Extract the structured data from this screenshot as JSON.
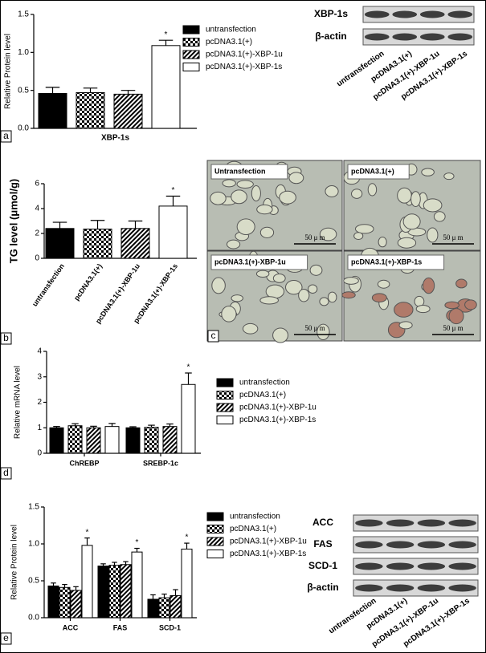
{
  "panels": [
    "a",
    "b",
    "c",
    "d",
    "e"
  ],
  "chart_data": [
    {
      "type": "bar",
      "ylabel": "Relative Protein level",
      "xlabel": "XBP-1s",
      "categories": [
        "XBP-1s"
      ],
      "series": [
        {
          "name": "untransfection",
          "color": "#000000",
          "pattern": "solid",
          "values": [
            0.46
          ],
          "errors": [
            0.08
          ],
          "significance": [
            null
          ]
        },
        {
          "name": "pcDNA3.1(+)",
          "color": "#000000",
          "pattern": "checker",
          "values": [
            0.47
          ],
          "errors": [
            0.06
          ],
          "significance": [
            null
          ]
        },
        {
          "name": "pcDNA3.1(+)-XBP-1u",
          "color": "#000000",
          "pattern": "hatch",
          "values": [
            0.45
          ],
          "errors": [
            0.05
          ],
          "significance": [
            null
          ]
        },
        {
          "name": "pcDNA3.1(+)-XBP-1s",
          "color": "#ffffff",
          "pattern": "solid",
          "values": [
            1.09
          ],
          "errors": [
            0.07
          ],
          "significance": [
            "*"
          ]
        }
      ],
      "ylim": [
        0,
        1.5
      ],
      "yticks": [
        {
          "value": 0,
          "label": "0.0"
        },
        {
          "value": 0.5,
          "label": "0.5"
        },
        {
          "value": 1,
          "label": "1.0"
        },
        {
          "value": 1.5,
          "label": "1.5"
        }
      ],
      "legend": "right"
    },
    {
      "type": "bar",
      "ylabel": "TG level (μmol/g)",
      "categories": [
        "untransfection",
        "pcDNA3.1(+)",
        "pcDNA3.1(+)-XBP-1u",
        "pcDNA3.1(+)-XBP-1s"
      ],
      "values": [
        2.4,
        2.35,
        2.4,
        4.2
      ],
      "errors": [
        0.5,
        0.7,
        0.6,
        0.8
      ],
      "significance": [
        null,
        null,
        null,
        "*"
      ],
      "colors": [
        "#000000",
        "#000000",
        "#000000",
        "#ffffff"
      ],
      "patterns": [
        "solid",
        "checker",
        "hatch",
        "solid"
      ],
      "ylim": [
        0,
        6
      ],
      "yticks": [
        0,
        2,
        4,
        6
      ]
    },
    {
      "type": "bar",
      "ylabel": "Relative mRNA level",
      "categories": [
        "ChREBP",
        "SREBP-1c"
      ],
      "series": [
        {
          "name": "untransfection",
          "color": "#000000",
          "pattern": "solid",
          "values": [
            1.0,
            1.0
          ],
          "errors": [
            0.05,
            0.04
          ],
          "significance": [
            null,
            null
          ]
        },
        {
          "name": "pcDNA3.1(+)",
          "color": "#000000",
          "pattern": "checker",
          "values": [
            1.08,
            1.02
          ],
          "errors": [
            0.08,
            0.08
          ],
          "significance": [
            null,
            null
          ]
        },
        {
          "name": "pcDNA3.1(+)-XBP-1u",
          "color": "#000000",
          "pattern": "hatch",
          "values": [
            1.0,
            1.05
          ],
          "errors": [
            0.06,
            0.1
          ],
          "significance": [
            null,
            null
          ]
        },
        {
          "name": "pcDNA3.1(+)-XBP-1s",
          "color": "#ffffff",
          "pattern": "solid",
          "values": [
            1.05,
            2.7
          ],
          "errors": [
            0.12,
            0.45
          ],
          "significance": [
            null,
            "*"
          ]
        }
      ],
      "ylim": [
        0,
        4
      ],
      "yticks": [
        0,
        1,
        2,
        3,
        4
      ],
      "legend": "right"
    },
    {
      "type": "bar",
      "ylabel": "Relative Protein level",
      "categories": [
        "ACC",
        "FAS",
        "SCD-1"
      ],
      "series": [
        {
          "name": "untransfection",
          "color": "#000000",
          "pattern": "solid",
          "values": [
            0.43,
            0.7,
            0.25
          ],
          "errors": [
            0.04,
            0.03,
            0.06
          ],
          "significance": [
            null,
            null,
            null
          ]
        },
        {
          "name": "pcDNA3.1(+)",
          "color": "#000000",
          "pattern": "checker",
          "values": [
            0.41,
            0.71,
            0.27
          ],
          "errors": [
            0.04,
            0.04,
            0.05
          ],
          "significance": [
            null,
            null,
            null
          ]
        },
        {
          "name": "pcDNA3.1(+)-XBP-1u",
          "color": "#000000",
          "pattern": "hatch",
          "values": [
            0.37,
            0.72,
            0.3
          ],
          "errors": [
            0.05,
            0.04,
            0.08
          ],
          "significance": [
            null,
            null,
            null
          ]
        },
        {
          "name": "pcDNA3.1(+)-XBP-1s",
          "color": "#ffffff",
          "pattern": "solid",
          "values": [
            0.98,
            0.89,
            0.93
          ],
          "errors": [
            0.1,
            0.05,
            0.08
          ],
          "significance": [
            "*",
            "*",
            "*"
          ]
        }
      ],
      "ylim": [
        0,
        1.5
      ],
      "yticks": [
        {
          "value": 0,
          "label": "0.0"
        },
        {
          "value": 0.5,
          "label": "0.5"
        },
        {
          "value": 1,
          "label": "1.0"
        },
        {
          "value": 1.5,
          "label": "1.5"
        }
      ],
      "legend": "right"
    }
  ],
  "blots": [
    {
      "rows": [
        "XBP-1s",
        "β-actin"
      ],
      "lanes": [
        "untransfection",
        "pcDNA3.1(+)",
        "pcDNA3.1(+)-XBP-1u",
        "pcDNA3.1(+)-XBP-1s"
      ]
    },
    {
      "rows": [
        "ACC",
        "FAS",
        "SCD-1",
        "β-actin"
      ],
      "lanes": [
        "untransfection",
        "pcDNA3.1(+)",
        "pcDNA3.1(+)-XBP-1u",
        "pcDNA3.1(+)-XBP-1s"
      ]
    }
  ],
  "micrographs": [
    {
      "label": "Untransfection",
      "scale": "50 μ m"
    },
    {
      "label": "pcDNA3.1(+)",
      "scale": "50 μ m"
    },
    {
      "label": "pcDNA3.1(+)-XBP-1u",
      "scale": "50 μ m"
    },
    {
      "label": "pcDNA3.1(+)-XBP-1s",
      "scale": "50 μ m"
    }
  ]
}
